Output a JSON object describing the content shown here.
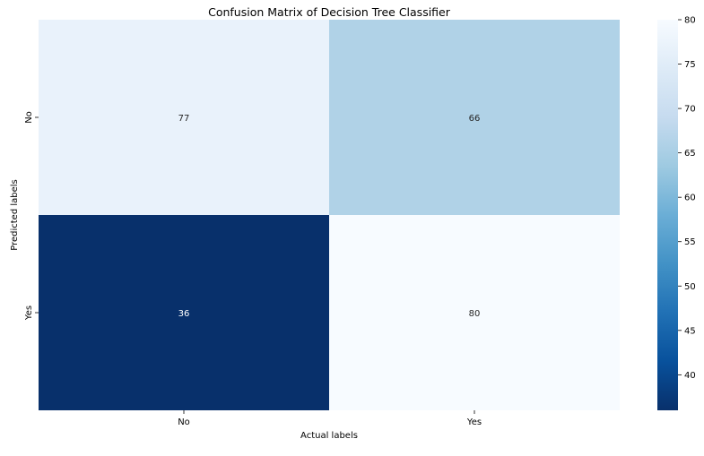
{
  "chart_data": {
    "type": "heatmap",
    "title": "Confusion Matrix of Decision Tree Classifier",
    "xlabel": "Actual labels",
    "ylabel": "Predicted labels",
    "x_categories": [
      "No",
      "Yes"
    ],
    "y_categories": [
      "No",
      "Yes"
    ],
    "values": [
      [
        77,
        66
      ],
      [
        36,
        80
      ]
    ],
    "colormap": "Blues_r",
    "color_range": [
      36,
      80
    ],
    "colorbar_ticks": [
      40,
      45,
      50,
      55,
      60,
      65,
      70,
      75,
      80
    ],
    "annotation_colors": {
      "light_cell": "#262626",
      "dark_cell": "#ffffff"
    }
  }
}
